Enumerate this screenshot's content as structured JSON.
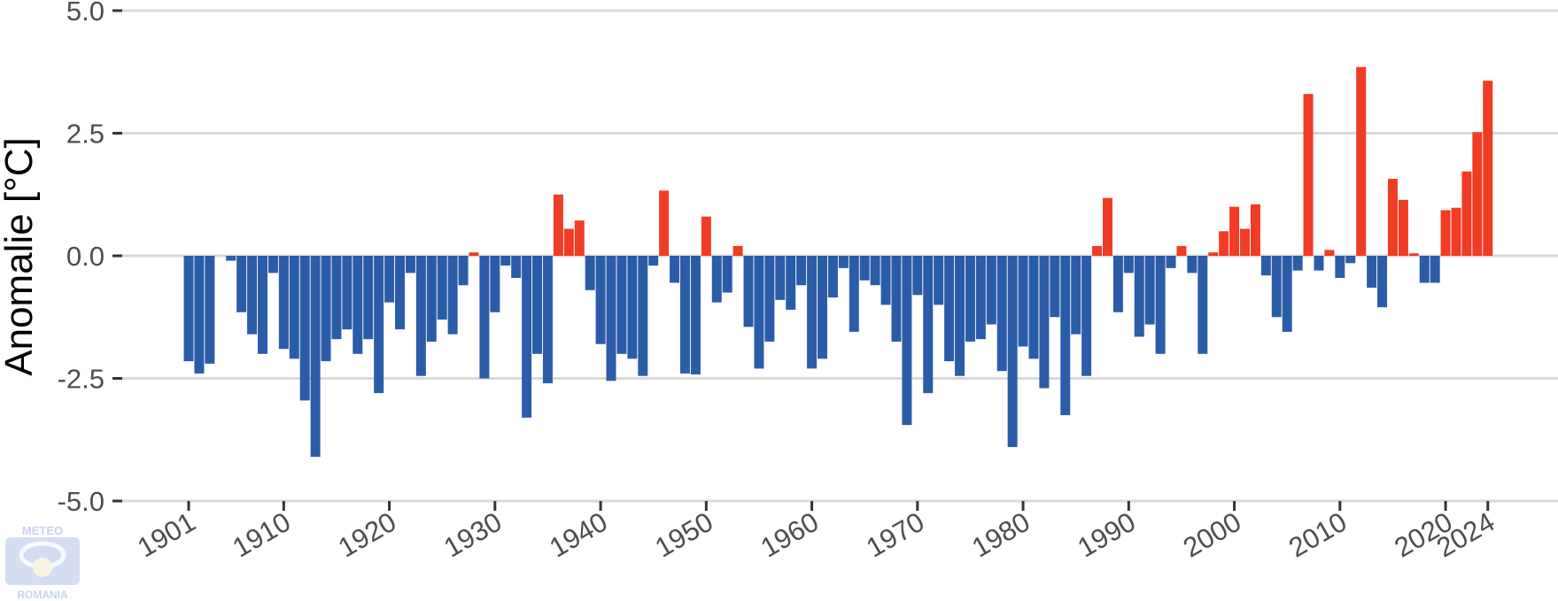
{
  "chart_data": {
    "type": "bar",
    "title": "",
    "xlabel": "",
    "ylabel": "Anomalie [°C]",
    "ylim": [
      -5.0,
      5.0
    ],
    "yticks": [
      {
        "value": 5.0,
        "label": "5.0"
      },
      {
        "value": 2.5,
        "label": "2.5"
      },
      {
        "value": 0.0,
        "label": "0.0"
      },
      {
        "value": -2.5,
        "label": "-2.5"
      },
      {
        "value": -5.0,
        "label": "-5.0"
      }
    ],
    "xticks": [
      1901,
      1910,
      1920,
      1930,
      1940,
      1950,
      1960,
      1970,
      1980,
      1990,
      2000,
      2010,
      2020,
      2024
    ],
    "grid": "horizontal",
    "colors": {
      "positive": "#f03c24",
      "negative": "#2b5ca8",
      "grid": "#d9d9d9",
      "tick": "#4d4d4d"
    },
    "x_start": 1901,
    "x_end": 2024,
    "values": [
      -2.15,
      -2.4,
      -2.2,
      0,
      -0.1,
      -1.15,
      -1.6,
      -2.0,
      -0.35,
      -1.9,
      -2.1,
      -2.95,
      -4.1,
      -2.15,
      -1.7,
      -1.5,
      -2.0,
      -1.7,
      -2.8,
      -0.95,
      -1.5,
      -0.35,
      -2.45,
      -1.75,
      -1.3,
      -1.6,
      -0.6,
      0.07,
      -2.5,
      -1.15,
      -0.2,
      -0.45,
      -3.3,
      -2.0,
      -2.6,
      1.25,
      0.55,
      0.72,
      -0.7,
      -1.8,
      -2.55,
      -2.0,
      -2.1,
      -2.45,
      -0.2,
      1.33,
      -0.55,
      -2.4,
      -2.42,
      0.8,
      -0.95,
      -0.75,
      0.2,
      -1.45,
      -2.3,
      -1.75,
      -0.9,
      -1.1,
      -0.6,
      -2.3,
      -2.1,
      -0.85,
      -0.25,
      -1.55,
      -0.5,
      -0.6,
      -1.0,
      -1.75,
      -3.45,
      -0.8,
      -2.8,
      -1.0,
      -2.15,
      -2.45,
      -1.75,
      -1.7,
      -1.4,
      -2.35,
      -3.9,
      -1.85,
      -2.1,
      -2.7,
      -1.25,
      -3.25,
      -1.6,
      -2.45,
      0.2,
      1.18,
      -1.15,
      -0.35,
      -1.65,
      -1.4,
      -2.0,
      -0.25,
      0.2,
      -0.35,
      -2.0,
      0.07,
      0.5,
      1.0,
      0.55,
      1.05,
      -0.4,
      -1.25,
      -1.55,
      -0.3,
      3.3,
      -0.3,
      0.12,
      -0.45,
      -0.15,
      3.85,
      -0.65,
      -1.05,
      1.57,
      1.14,
      0.05,
      -0.55,
      -0.55,
      0.93,
      0.98,
      1.72,
      2.52,
      3.57
    ]
  },
  "watermark": {
    "top_text": "METEO",
    "bottom_text": "ROMANIA"
  }
}
